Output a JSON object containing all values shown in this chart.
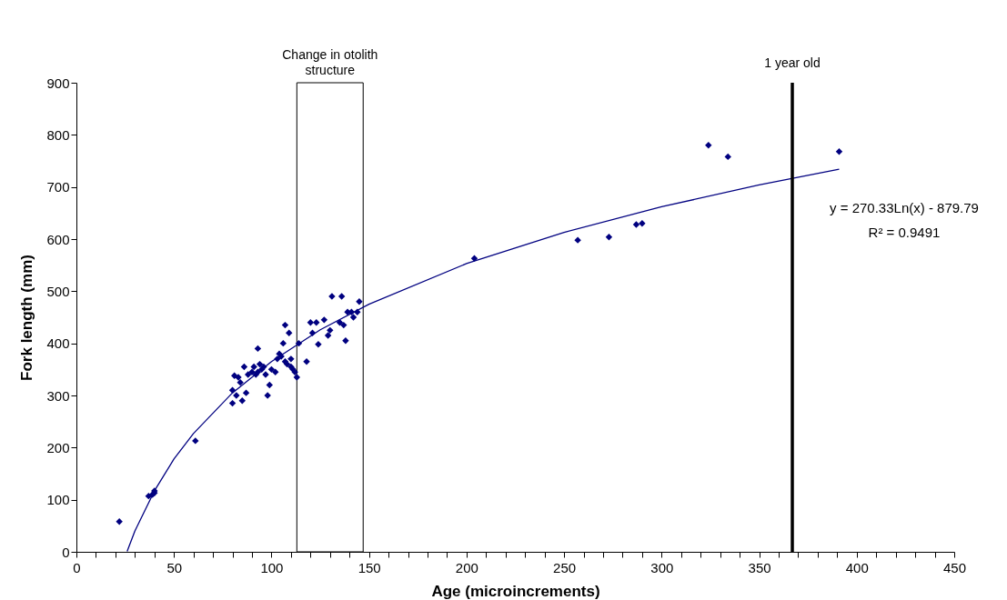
{
  "chart_data": {
    "type": "scatter",
    "xlabel": "Age (microincrements)",
    "ylabel": "Fork length (mm)",
    "xlim": [
      0,
      450
    ],
    "ylim": [
      0,
      900
    ],
    "xticks": [
      0,
      {
        "value": 10,
        "label": null
      },
      {
        "value": 20,
        "label": null
      },
      {
        "value": 30,
        "label": null
      },
      {
        "value": 40,
        "label": null
      },
      50,
      {
        "value": 60,
        "label": null
      },
      {
        "value": 70,
        "label": null
      },
      {
        "value": 80,
        "label": null
      },
      {
        "value": 90,
        "label": null
      },
      100,
      {
        "value": 110,
        "label": null
      },
      {
        "value": 120,
        "label": null
      },
      {
        "value": 130,
        "label": null
      },
      {
        "value": 140,
        "label": null
      },
      150,
      {
        "value": 160,
        "label": null
      },
      {
        "value": 170,
        "label": null
      },
      {
        "value": 180,
        "label": null
      },
      {
        "value": 190,
        "label": null
      },
      200,
      {
        "value": 210,
        "label": null
      },
      {
        "value": 220,
        "label": null
      },
      {
        "value": 230,
        "label": null
      },
      {
        "value": 240,
        "label": null
      },
      250,
      {
        "value": 260,
        "label": null
      },
      {
        "value": 270,
        "label": null
      },
      {
        "value": 280,
        "label": null
      },
      {
        "value": 290,
        "label": null
      },
      300,
      {
        "value": 310,
        "label": null
      },
      {
        "value": 320,
        "label": null
      },
      {
        "value": 330,
        "label": null
      },
      {
        "value": 340,
        "label": null
      },
      350,
      {
        "value": 360,
        "label": null
      },
      {
        "value": 370,
        "label": null
      },
      {
        "value": 380,
        "label": null
      },
      {
        "value": 390,
        "label": null
      },
      400,
      {
        "value": 410,
        "label": null
      },
      {
        "value": 420,
        "label": null
      },
      {
        "value": 430,
        "label": null
      },
      {
        "value": 440,
        "label": null
      },
      450
    ],
    "yticks": [
      0,
      100,
      200,
      300,
      400,
      500,
      600,
      700,
      800,
      900
    ],
    "grid": false,
    "marker": "diamond",
    "series": [
      {
        "color": "#000080",
        "x": [
          22,
          37,
          39,
          40,
          40,
          61,
          80,
          80,
          81,
          82,
          83,
          84,
          85,
          86,
          87,
          88,
          90,
          91,
          92,
          93,
          93,
          94,
          95,
          96,
          97,
          98,
          99,
          100,
          102,
          103,
          104,
          105,
          106,
          107,
          107,
          108,
          109,
          110,
          110,
          111,
          112,
          113,
          114,
          118,
          120,
          121,
          123,
          124,
          127,
          129,
          130,
          131,
          135,
          136,
          137,
          138,
          139,
          141,
          142,
          144,
          145,
          204,
          257,
          273,
          287,
          290,
          324,
          334,
          391
        ],
        "values": [
          58,
          107,
          110,
          113,
          117,
          213,
          285,
          310,
          338,
          300,
          335,
          325,
          290,
          355,
          305,
          340,
          345,
          355,
          340,
          390,
          345,
          360,
          350,
          355,
          340,
          300,
          320,
          350,
          345,
          370,
          380,
          375,
          400,
          435,
          365,
          360,
          420,
          355,
          370,
          350,
          345,
          335,
          400,
          365,
          440,
          420,
          440,
          398,
          445,
          415,
          425,
          490,
          440,
          490,
          435,
          405,
          460,
          460,
          450,
          460,
          480,
          563,
          598,
          604,
          628,
          630,
          780,
          758,
          768
        ]
      },
      {
        "type": "line",
        "color": "#000080",
        "line_style": "solid",
        "marker": "none",
        "x": [
          26,
          30,
          40,
          50,
          60,
          80,
          100,
          125,
          150,
          200,
          250,
          300,
          350,
          391
        ],
        "values": [
          1,
          40,
          117,
          178,
          227,
          305,
          365,
          426,
          475,
          553,
          613,
          662,
          704,
          734
        ]
      }
    ],
    "ref_lines": [
      {
        "axis": "x",
        "value": 367,
        "label": "1 year old",
        "color": "#000000"
      }
    ],
    "bands": [
      {
        "axis": "x",
        "from": 113,
        "to": 147,
        "label": "Change in otolith structure"
      }
    ],
    "annotations": [
      "y = 270.33Ln(x) - 879.79",
      "R² = 0.9491"
    ]
  }
}
